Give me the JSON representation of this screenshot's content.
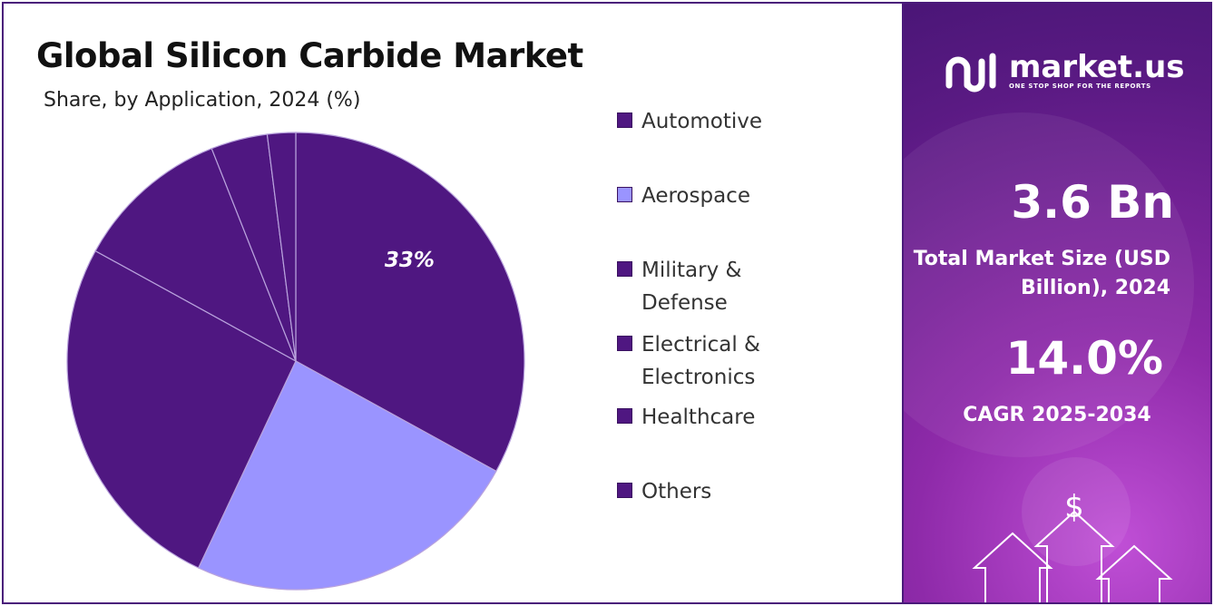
{
  "title": "Global Silicon Carbide Market",
  "subtitle": "Share, by Application, 2024 (%)",
  "colors": {
    "dark_purple": "#4f1781",
    "light_purple": "#9a94ff",
    "accent": "#4a1a7a"
  },
  "chart_data": {
    "type": "pie",
    "title": "Global Silicon Carbide Market",
    "subtitle": "Share, by Application, 2024 (%)",
    "categories": [
      "Automotive",
      "Aerospace",
      "Military & Defense",
      "Electrical & Electronics",
      "Healthcare",
      "Others"
    ],
    "values": [
      33,
      24,
      26,
      11,
      4,
      2
    ],
    "colors": [
      "#4f1781",
      "#9a94ff",
      "#4f1781",
      "#4f1781",
      "#4f1781",
      "#4f1781"
    ],
    "data_labels": [
      "33%",
      "",
      "",
      "",
      "",
      ""
    ],
    "legend": "right"
  },
  "legend": {
    "items": [
      {
        "label": "Automotive",
        "color": "#4f1781"
      },
      {
        "label": "Aerospace",
        "color": "#9a94ff"
      },
      {
        "label": "Military & Defense",
        "color": "#4f1781"
      },
      {
        "label": "Electrical & Electronics",
        "color": "#4f1781"
      },
      {
        "label": "Healthcare",
        "color": "#4f1781"
      },
      {
        "label": "Others",
        "color": "#4f1781"
      }
    ]
  },
  "sidebar": {
    "logo_name": "market.us",
    "logo_tagline": "ONE STOP SHOP FOR THE REPORTS",
    "market_size_value": "3.6 Bn",
    "market_size_label": "Total Market Size (USD Billion), 2024",
    "cagr_value": "14.0%",
    "cagr_label": "CAGR 2025-2034",
    "currency_symbol": "$"
  }
}
